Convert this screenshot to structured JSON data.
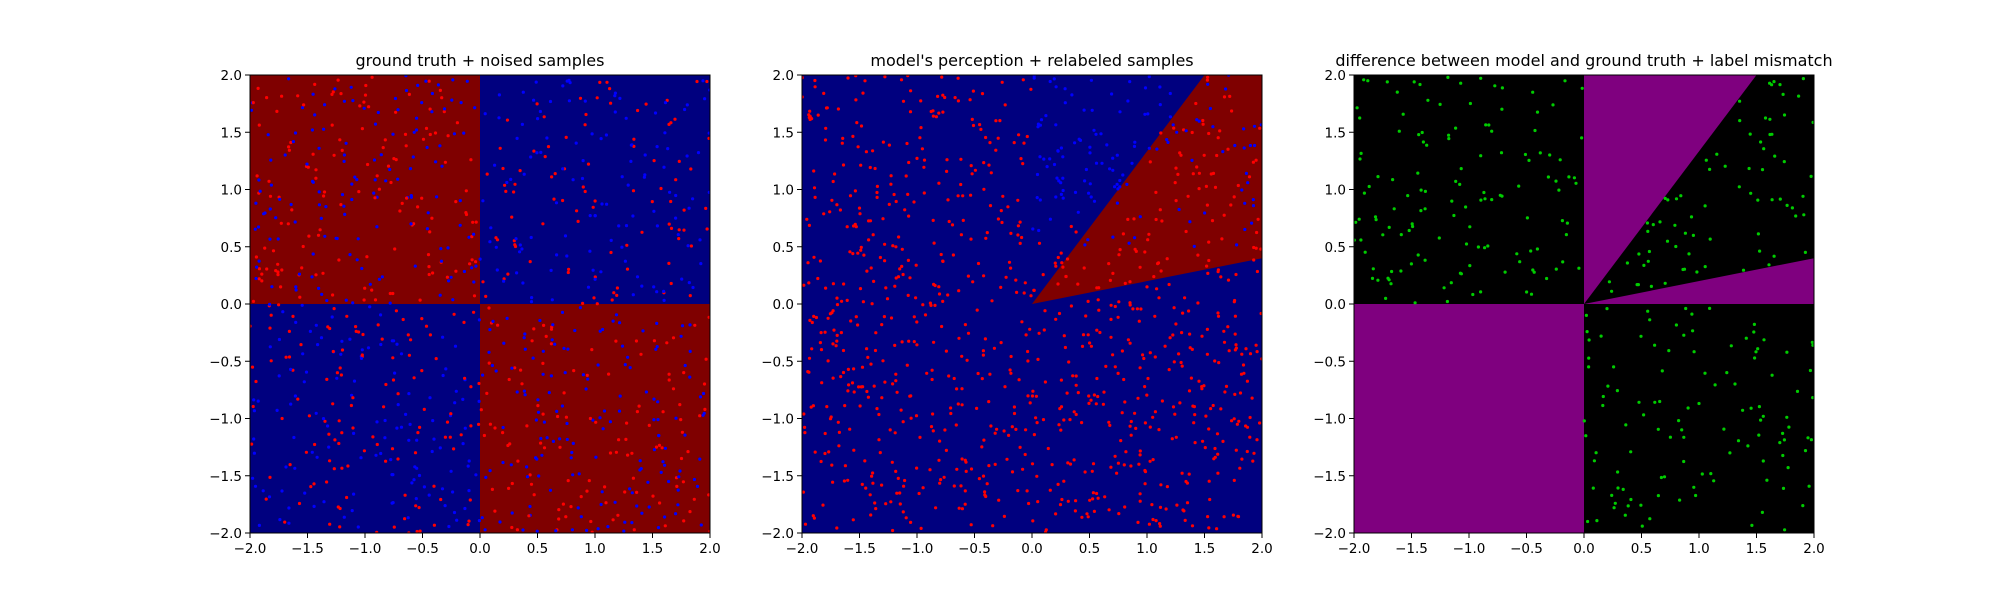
{
  "chart_data": [
    {
      "type": "scatter",
      "title": "ground truth + noised samples",
      "background": "region map: +x/+y blue, -x/+y red, -x/-y blue, +x/-y red (XOR quadrants)",
      "region_colors": {
        "class_a": "#00007f",
        "class_b": "#7f0000"
      },
      "regions": [
        {
          "quadrant": "top-left",
          "color": "#7f0000"
        },
        {
          "quadrant": "top-right",
          "color": "#00007f"
        },
        {
          "quadrant": "bottom-left",
          "color": "#00007f"
        },
        {
          "quadrant": "bottom-right",
          "color": "#7f0000"
        }
      ],
      "point_colors": [
        "#ff0000",
        "#0000ff"
      ],
      "samples": "about 1000 points uniformly spread over [-2,2] x [-2,2], mix of red and blue",
      "xlim": [
        -2.0,
        2.0
      ],
      "ylim": [
        -2.0,
        2.0
      ],
      "xticks": [
        "−2.0",
        "−1.5",
        "−1.0",
        "−0.5",
        "0.0",
        "0.5",
        "1.0",
        "1.5",
        "2.0"
      ],
      "yticks": [
        "2.0",
        "1.5",
        "1.0",
        "0.5",
        "0.0",
        "−0.5",
        "−1.0",
        "−1.5",
        "−2.0"
      ],
      "xlabel": "",
      "ylabel": "",
      "grid": false
    },
    {
      "type": "scatter",
      "title": "model's perception + relabeled samples",
      "background": "blue everywhere except a red wedge in x>0 between the rays through (1.5,2.0) and (2.0,0.4) from the origin",
      "region_colors": {
        "class_a": "#00007f",
        "class_b": "#7f0000"
      },
      "wedge": {
        "from": [
          0,
          0
        ],
        "ray_upper_end": [
          1.5,
          2.0
        ],
        "ray_lower_end": [
          2.0,
          0.4
        ],
        "color": "#7f0000"
      },
      "point_colors": [
        "#ff0000",
        "#0000ff"
      ],
      "samples": "mostly red points, blue points clustered in upper x>0 area near the wedge",
      "xlim": [
        -2.0,
        2.0
      ],
      "ylim": [
        -2.0,
        2.0
      ],
      "xticks": [
        "−2.0",
        "−1.5",
        "−1.0",
        "−0.5",
        "0.0",
        "0.5",
        "1.0",
        "1.5",
        "2.0"
      ],
      "yticks": [
        "2.0",
        "1.5",
        "1.0",
        "0.5",
        "0.0",
        "−0.5",
        "−1.0",
        "−1.5",
        "−2.0"
      ],
      "xlabel": "",
      "ylabel": "",
      "grid": false
    },
    {
      "type": "scatter",
      "title": "difference between model and ground truth + label mismatch",
      "background": "black where model matches ground truth, purple where it differs",
      "region_colors": {
        "match": "#000000",
        "mismatch": "#7f007f"
      },
      "mismatch_regions": [
        {
          "shape": "bottom-left quadrant",
          "color": "#7f007f"
        },
        {
          "shape": "wedge between x=0 and ray to (1.5,2.0) in x>0,y>0",
          "color": "#7f007f"
        },
        {
          "shape": "wedge between y=0 and ray to (2.0,0.4) in x>0",
          "color": "#7f007f"
        }
      ],
      "point_colors": [
        "#00cc00"
      ],
      "samples": "green points only in top-left and bottom-right black areas and the black wedge",
      "xlim": [
        -2.0,
        2.0
      ],
      "ylim": [
        -2.0,
        2.0
      ],
      "xticks": [
        "−2.0",
        "−1.5",
        "−1.0",
        "−0.5",
        "0.0",
        "0.5",
        "1.0",
        "1.5",
        "2.0"
      ],
      "yticks": [
        "2.0",
        "1.5",
        "1.0",
        "0.5",
        "0.0",
        "−0.5",
        "−1.0",
        "−1.5",
        "−2.0"
      ],
      "xlabel": "",
      "ylabel": "",
      "grid": false
    }
  ]
}
